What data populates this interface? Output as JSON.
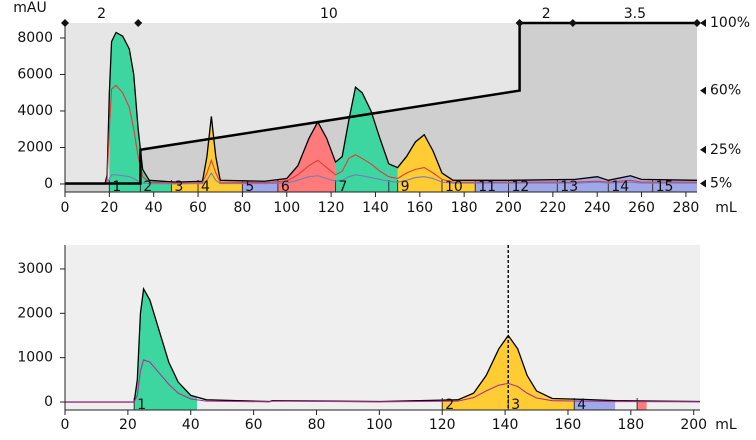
{
  "chart_data": [
    {
      "type": "line",
      "y_label": "mAU",
      "x_label": "mL",
      "plot_color": "#e6e6e6",
      "xlim": [
        0,
        285
      ],
      "ylim": [
        -440,
        8820
      ],
      "xticks": [
        0,
        20,
        40,
        60,
        80,
        100,
        120,
        140,
        160,
        180,
        200,
        220,
        240,
        260,
        280
      ],
      "yticks": [
        0,
        2000,
        4000,
        6000,
        8000
      ],
      "y2lim": [
        0,
        100
      ],
      "y2ticks": [
        {
          "value": 5,
          "label": "5%"
        },
        {
          "value": 25,
          "label": "25%"
        },
        {
          "value": 60,
          "label": "60%"
        },
        {
          "value": 100,
          "label": "100%"
        }
      ],
      "x": [
        0,
        18,
        19,
        20,
        21,
        23,
        26,
        29,
        31,
        33,
        35,
        38,
        50,
        62,
        64,
        66,
        68,
        70,
        90,
        100,
        105,
        110,
        114,
        118,
        122,
        125,
        128,
        131,
        134,
        138,
        142,
        146,
        150,
        154,
        158,
        162,
        166,
        170,
        175,
        200,
        230,
        240,
        245,
        255,
        260,
        285
      ],
      "series": [
        {
          "color": "#000000",
          "values": [
            0,
            0,
            500,
            5000,
            7800,
            8300,
            8100,
            7400,
            6000,
            3000,
            800,
            200,
            100,
            150,
            1500,
            3700,
            1500,
            200,
            150,
            300,
            1000,
            2500,
            3400,
            2500,
            1200,
            1500,
            3500,
            5300,
            5000,
            4000,
            2500,
            1100,
            900,
            1500,
            2300,
            2700,
            1800,
            600,
            200,
            200,
            250,
            400,
            200,
            450,
            250,
            200
          ]
        },
        {
          "color": "#e03c3c",
          "values": [
            0,
            0,
            200,
            3000,
            5200,
            5400,
            5000,
            4200,
            3000,
            1500,
            400,
            100,
            50,
            80,
            600,
            1300,
            600,
            100,
            80,
            150,
            500,
            1000,
            1300,
            900,
            500,
            700,
            1400,
            1600,
            1400,
            1100,
            700,
            400,
            300,
            600,
            800,
            900,
            600,
            250,
            100,
            100,
            100,
            150,
            100,
            200,
            100,
            100
          ]
        },
        {
          "color": "#7a7ab8",
          "values": [
            0,
            0,
            50,
            300,
            500,
            500,
            450,
            400,
            300,
            150,
            50,
            20,
            10,
            20,
            200,
            600,
            200,
            20,
            20,
            50,
            200,
            400,
            450,
            300,
            150,
            200,
            400,
            500,
            450,
            350,
            250,
            150,
            100,
            200,
            350,
            400,
            300,
            100,
            50,
            50,
            50,
            100,
            50,
            100,
            50,
            50
          ]
        },
        {
          "color": "#000000",
          "axis": "y2",
          "x": [
            0,
            34,
            34,
            205,
            205,
            285
          ],
          "values": [
            5,
            5,
            25,
            60,
            100,
            100
          ]
        }
      ],
      "fractions": {
        "labels": [
          "1",
          "2",
          "3",
          "4",
          "5",
          "6",
          "7",
          null,
          "9",
          "10",
          "11",
          "12",
          "13",
          "14",
          "15"
        ],
        "starts": [
          20,
          34,
          48,
          60,
          80,
          96,
          122,
          146,
          150,
          170,
          185,
          200,
          222,
          245,
          265
        ],
        "ends": [
          34,
          48,
          60,
          80,
          96,
          122,
          146,
          150,
          170,
          185,
          200,
          222,
          245,
          265,
          285
        ],
        "colors": [
          "#3dd6a0",
          "#3dd6a0",
          "#ffcc33",
          "#ffcc33",
          "#9fa8e8",
          "#ff7a7a",
          "#3dd6a0",
          "#3dd6a0",
          "#ffcc33",
          "#ffcc33",
          "#9fa8e8",
          "#9fa8e8",
          "#9fa8e8",
          "#9fa8e8",
          "#9fa8e8"
        ]
      },
      "flow_segments": {
        "labels": [
          "2",
          "10",
          "2",
          "3.5"
        ],
        "boundaries": [
          0,
          33,
          205,
          229,
          285
        ]
      }
    },
    {
      "type": "line",
      "x_label": "mL",
      "plot_color": "#efefef",
      "xlim": [
        0,
        202
      ],
      "ylim": [
        -180,
        3540
      ],
      "xticks": [
        0,
        20,
        40,
        60,
        80,
        100,
        120,
        140,
        160,
        180,
        200
      ],
      "yticks": [
        0,
        1000,
        2000,
        3000
      ],
      "x": [
        0,
        22,
        23,
        24,
        25,
        27,
        30,
        33,
        36,
        40,
        45,
        65,
        66,
        100,
        125,
        130,
        134,
        138,
        141,
        144,
        147,
        150,
        155,
        165,
        175,
        202
      ],
      "series": [
        {
          "color": "#000000",
          "values": [
            0,
            0,
            500,
            2000,
            2550,
            2300,
            1600,
            900,
            450,
            150,
            50,
            10,
            30,
            10,
            50,
            200,
            600,
            1200,
            1500,
            1200,
            600,
            250,
            80,
            60,
            30,
            10
          ]
        },
        {
          "color": "#b03090",
          "values": [
            0,
            0,
            150,
            700,
            950,
            900,
            650,
            400,
            200,
            70,
            20,
            5,
            20,
            5,
            20,
            100,
            250,
            380,
            420,
            350,
            200,
            90,
            30,
            20,
            10,
            5
          ]
        }
      ],
      "fractions": {
        "labels": [
          "1",
          "2",
          "3",
          "4",
          null
        ],
        "starts": [
          22,
          120,
          141,
          162,
          182
        ],
        "ends": [
          42,
          141,
          162,
          175,
          185
        ],
        "colors": [
          "#3dd6a0",
          "#ffcc33",
          "#ffcc33",
          "#9fa8e8",
          "#ff7a7a"
        ]
      },
      "marker_x": 141
    }
  ]
}
